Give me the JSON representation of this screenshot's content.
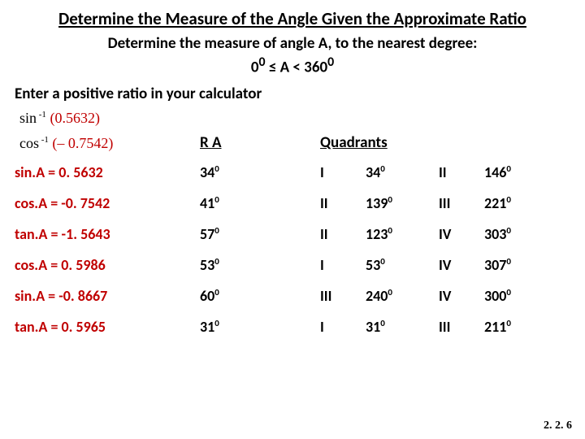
{
  "title": "Determine the Measure of the Angle Given the Approximate Ratio",
  "subtitle": "Determine the measure of angle A, to the nearest degree:",
  "range_prefix": "0",
  "range_mid": " ≤  A < 360",
  "instruction": "Enter a positive ratio in your calculator",
  "inv1_fn": "sin",
  "inv1_arg": "0.5632",
  "inv2_fn": "cos",
  "inv2_arg": "– 0.7542",
  "header_ra": "R A",
  "header_quadrants": "Quadrants",
  "rows": [
    {
      "eq": "sin.A = 0. 5632",
      "ra": "34",
      "q1": "I",
      "v1": "34",
      "q2": "II",
      "v2": "146"
    },
    {
      "eq": "cos.A = -0. 7542",
      "ra": "41",
      "q1": "II",
      "v1": "139",
      "q2": "III",
      "v2": "221"
    },
    {
      "eq": "tan.A = -1. 5643",
      "ra": "57",
      "q1": "II",
      "v1": "123",
      "q2": "IV",
      "v2": "303"
    },
    {
      "eq": "cos.A = 0. 5986",
      "ra": "53",
      "q1": "I",
      "v1": "53",
      "q2": "IV",
      "v2": "307"
    },
    {
      "eq": "sin.A = -0. 8667",
      "ra": "60",
      "q1": "III",
      "v1": "240",
      "q2": "IV",
      "v2": "300"
    },
    {
      "eq": "tan.A = 0. 5965",
      "ra": "31",
      "q1": "I",
      "v1": "31",
      "q2": "III",
      "v2": "211"
    }
  ],
  "footer": "2. 2. 6",
  "colors": {
    "equation_color": "#c00000",
    "text_color": "#000000",
    "background": "#ffffff"
  },
  "typography": {
    "title_fontsize": 21,
    "body_fontsize": 18,
    "font_family": "Calibri",
    "inv_font_family": "Times New Roman"
  }
}
